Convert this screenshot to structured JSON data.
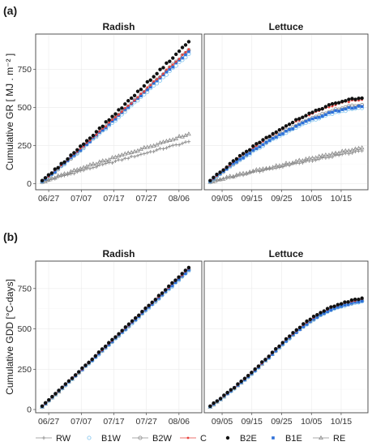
{
  "figure": {
    "panel_tags": [
      "(a)",
      "(b)"
    ]
  },
  "legend": {
    "items": [
      {
        "label": "RW",
        "color": "#8c8c8c",
        "shape": "plus-line"
      },
      {
        "label": "B1W",
        "color": "#7fc4ee",
        "shape": "open-circle"
      },
      {
        "label": "B2W",
        "color": "#8c8c8c",
        "shape": "open-circle-line"
      },
      {
        "label": "C",
        "color": "#e8413c",
        "shape": "dot-line"
      },
      {
        "label": "B2E",
        "color": "#111111",
        "shape": "filled-circle"
      },
      {
        "label": "B1E",
        "color": "#2e6fd8",
        "shape": "filled-square"
      },
      {
        "label": "RE",
        "color": "#8c8c8c",
        "shape": "triangle-line"
      }
    ]
  },
  "chart_data": [
    {
      "type": "scatter",
      "panel": "(a)",
      "facet": "Radish",
      "ylabel": "Cumulative GR [ MJ . m⁻² ]",
      "xlabel": "",
      "x_range": [
        "06/23",
        "08/13"
      ],
      "x_ticks": [
        "06/27",
        "07/07",
        "07/17",
        "07/27",
        "08/06"
      ],
      "x_tick_days": [
        4,
        14,
        24,
        34,
        44
      ],
      "ylim": [
        -40,
        980
      ],
      "y_ticks": [
        0,
        250,
        500,
        750
      ],
      "x_start_day": 2,
      "x_end_day": 47,
      "series": [
        {
          "name": "RW",
          "end_value": 275
        },
        {
          "name": "B1W",
          "end_value": 850
        },
        {
          "name": "B2W",
          "end_value": 875
        },
        {
          "name": "C",
          "end_value": 880
        },
        {
          "name": "B2E",
          "end_value": 930
        },
        {
          "name": "B1E",
          "end_value": 865
        },
        {
          "name": "RE",
          "end_value": 325
        }
      ]
    },
    {
      "type": "scatter",
      "panel": "(a)",
      "facet": "Lettuce",
      "ylabel": "Cumulative GR [ MJ . m⁻² ]",
      "xlabel": "",
      "x_range": [
        "08/30",
        "10/24"
      ],
      "x_ticks": [
        "09/05",
        "09/15",
        "09/25",
        "10/05",
        "10/15"
      ],
      "x_tick_days": [
        6,
        16,
        26,
        36,
        46
      ],
      "ylim": [
        -40,
        980
      ],
      "y_ticks": [
        0,
        250,
        500,
        750
      ],
      "x_start_day": 2,
      "x_end_day": 53,
      "series": [
        {
          "name": "RW",
          "end_value": 215
        },
        {
          "name": "B1W",
          "end_value": 495
        },
        {
          "name": "B2W",
          "end_value": 515
        },
        {
          "name": "C",
          "end_value": 550
        },
        {
          "name": "B2E",
          "end_value": 560
        },
        {
          "name": "B1E",
          "end_value": 505
        },
        {
          "name": "RE",
          "end_value": 235
        }
      ]
    },
    {
      "type": "scatter",
      "panel": "(b)",
      "facet": "Radish",
      "ylabel": "Cumulative GDD [°C-days]",
      "xlabel": "",
      "x_range": [
        "06/23",
        "08/13"
      ],
      "x_ticks": [
        "06/27",
        "07/07",
        "07/17",
        "07/27",
        "08/06"
      ],
      "x_tick_days": [
        4,
        14,
        24,
        34,
        44
      ],
      "ylim": [
        -20,
        920
      ],
      "y_ticks": [
        0,
        250,
        500,
        750
      ],
      "x_start_day": 2,
      "x_end_day": 47,
      "series": [
        {
          "name": "RW",
          "end_value": 870
        },
        {
          "name": "B1W",
          "end_value": 860
        },
        {
          "name": "B2W",
          "end_value": 868
        },
        {
          "name": "C",
          "end_value": 875
        },
        {
          "name": "B2E",
          "end_value": 880
        },
        {
          "name": "B1E",
          "end_value": 865
        },
        {
          "name": "RE",
          "end_value": 872
        }
      ]
    },
    {
      "type": "scatter",
      "panel": "(b)",
      "facet": "Lettuce",
      "ylabel": "Cumulative GDD [°C-days]",
      "xlabel": "",
      "x_range": [
        "08/30",
        "10/24"
      ],
      "x_ticks": [
        "09/05",
        "09/15",
        "09/25",
        "10/05",
        "10/15"
      ],
      "x_tick_days": [
        6,
        16,
        26,
        36,
        46
      ],
      "ylim": [
        -20,
        920
      ],
      "y_ticks": [
        0,
        250,
        500,
        750
      ],
      "x_start_day": 2,
      "x_end_day": 53,
      "series": [
        {
          "name": "RW",
          "end_value": 680
        },
        {
          "name": "B1W",
          "end_value": 670
        },
        {
          "name": "B2W",
          "end_value": 675
        },
        {
          "name": "C",
          "end_value": 685
        },
        {
          "name": "B2E",
          "end_value": 690
        },
        {
          "name": "B1E",
          "end_value": 672
        },
        {
          "name": "RE",
          "end_value": 678
        }
      ]
    }
  ]
}
